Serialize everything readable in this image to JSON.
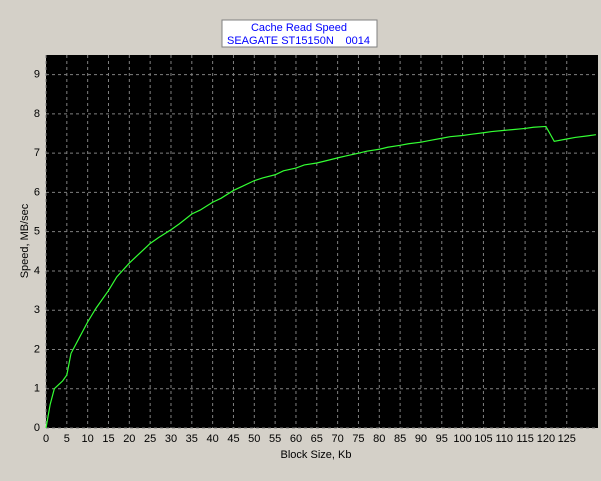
{
  "chart_data": {
    "type": "line",
    "title": "Cache Read Speed",
    "subtitle": "SEAGATE ST15150N",
    "revision": "0014",
    "x_label": "Block Size, Kb",
    "y_label": "Speed, MB/sec",
    "x": [
      0,
      1,
      2,
      4,
      5,
      6,
      8,
      10,
      12,
      15,
      17,
      20,
      22,
      25,
      27,
      30,
      32,
      35,
      37,
      40,
      42,
      45,
      47,
      50,
      52,
      55,
      57,
      60,
      62,
      65,
      67,
      70,
      72,
      75,
      77,
      80,
      82,
      85,
      87,
      90,
      92,
      95,
      97,
      100,
      102,
      105,
      107,
      110,
      112,
      115,
      117,
      120,
      122,
      125,
      127,
      130,
      132
    ],
    "series": [
      {
        "name": "Speed",
        "color": "#33ff33",
        "values": [
          0,
          0.6,
          1.0,
          1.2,
          1.35,
          1.9,
          2.3,
          2.7,
          3.05,
          3.5,
          3.85,
          4.2,
          4.4,
          4.7,
          4.85,
          5.05,
          5.2,
          5.45,
          5.55,
          5.75,
          5.85,
          6.05,
          6.15,
          6.3,
          6.37,
          6.45,
          6.55,
          6.62,
          6.7,
          6.75,
          6.8,
          6.88,
          6.93,
          7.0,
          7.05,
          7.1,
          7.15,
          7.2,
          7.24,
          7.28,
          7.32,
          7.38,
          7.42,
          7.45,
          7.48,
          7.52,
          7.55,
          7.58,
          7.6,
          7.63,
          7.66,
          7.68,
          7.3,
          7.36,
          7.4,
          7.44,
          7.47
        ]
      }
    ],
    "xlim": [
      0,
      132.5
    ],
    "ylim": [
      0,
      9.5
    ],
    "xticks": [
      0,
      5,
      10,
      15,
      20,
      25,
      30,
      35,
      40,
      45,
      50,
      55,
      60,
      65,
      70,
      75,
      80,
      85,
      90,
      95,
      100,
      105,
      110,
      115,
      120,
      125
    ],
    "yticks": [
      0,
      1,
      2,
      3,
      4,
      5,
      6,
      7,
      8,
      9
    ],
    "grid": true,
    "plot_background": "#000000"
  }
}
